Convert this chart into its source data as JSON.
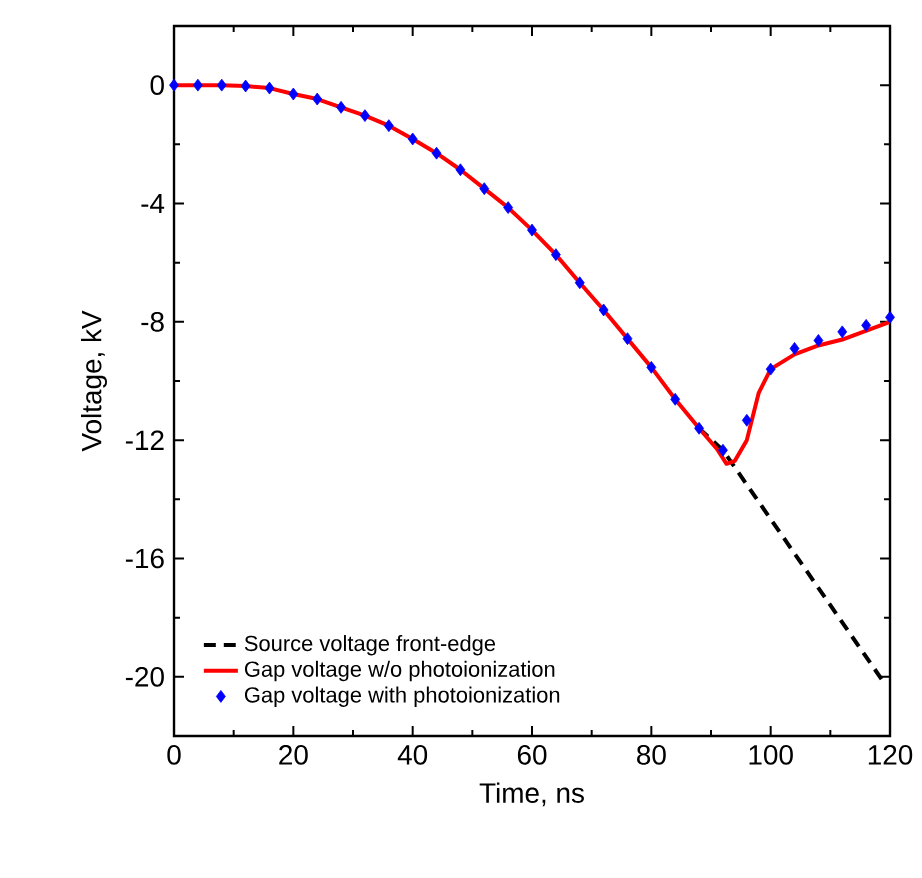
{
  "chart_data": {
    "type": "line",
    "xlabel": "Time, ns",
    "ylabel": "Voltage, kV",
    "xlim": [
      0,
      120
    ],
    "ylim": [
      -22,
      2
    ],
    "xticks": [
      0,
      20,
      40,
      60,
      80,
      100,
      120
    ],
    "yticks": [
      0,
      -4,
      -8,
      -12,
      -16,
      -20
    ],
    "legend": "bottom left",
    "grid": false,
    "series": [
      {
        "name": "Source voltage front-edge",
        "line_style": "dashed",
        "marker": "none",
        "color": "#000000",
        "x": [
          88,
          92,
          119
        ],
        "values": [
          -11.6,
          -12.34,
          -20.2
        ]
      },
      {
        "name": "Gap voltage w/o photoionization",
        "line_style": "solid",
        "marker": "none",
        "color": "#ff0000",
        "x": [
          0,
          4,
          8,
          12,
          16,
          20,
          24,
          28,
          32,
          36,
          40,
          44,
          48,
          52,
          56,
          60,
          64,
          68,
          72,
          76,
          80,
          84,
          88,
          91,
          92.6,
          94,
          96,
          98,
          100,
          104,
          108,
          112,
          116,
          120
        ],
        "values": [
          0,
          0,
          0,
          -0.03,
          -0.1,
          -0.3,
          -0.47,
          -0.75,
          -1.03,
          -1.37,
          -1.82,
          -2.3,
          -2.86,
          -3.5,
          -4.14,
          -4.9,
          -5.73,
          -6.68,
          -7.6,
          -8.57,
          -9.54,
          -10.62,
          -11.6,
          -12.3,
          -12.8,
          -12.7,
          -12.0,
          -10.4,
          -9.6,
          -9.1,
          -8.8,
          -8.6,
          -8.3,
          -8.0
        ]
      },
      {
        "name": "Gap voltage with photoionization",
        "type": "scatter",
        "marker": "diamond",
        "color": "#0000ff",
        "x": [
          0,
          4,
          8,
          12,
          16,
          20,
          24,
          28,
          32,
          36,
          40,
          44,
          48,
          52,
          56,
          60,
          64,
          68,
          72,
          76,
          80,
          84,
          88,
          92,
          96,
          100,
          104,
          108,
          112,
          116,
          120
        ],
        "values": [
          0,
          0,
          0,
          -0.03,
          -0.1,
          -0.3,
          -0.47,
          -0.75,
          -1.03,
          -1.37,
          -1.82,
          -2.3,
          -2.86,
          -3.5,
          -4.14,
          -4.9,
          -5.73,
          -6.68,
          -7.6,
          -8.57,
          -9.54,
          -10.62,
          -11.6,
          -12.34,
          -11.33,
          -9.6,
          -8.9,
          -8.63,
          -8.34,
          -8.12,
          -7.85
        ]
      }
    ]
  }
}
